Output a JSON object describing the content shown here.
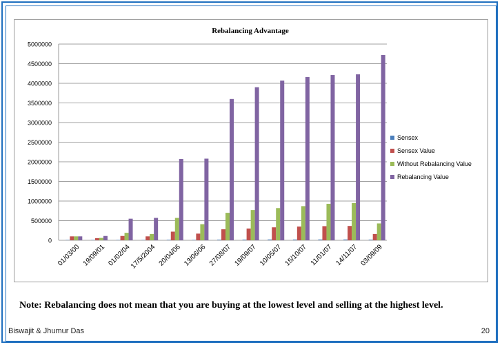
{
  "note": "Note: Rebalancing does not mean that you are buying at the lowest level and selling at the highest level.",
  "footer": {
    "author": "Biswajit & Jhumur Das",
    "page": "20"
  },
  "chart_data": {
    "type": "bar",
    "title": "Rebalancing Advantage",
    "xlabel": "",
    "ylabel": "",
    "ylim": [
      0,
      5000000
    ],
    "yticks": [
      "0",
      "500000",
      "1000000",
      "1500000",
      "2000000",
      "2500000",
      "3000000",
      "3500000",
      "4000000",
      "4500000",
      "5000000"
    ],
    "grid": true,
    "legend_position": "right",
    "categories": [
      "01/03/00",
      "19/09/01",
      "01/02/04",
      "17/5/2004",
      "20/04/06",
      "13/06/06",
      "27/08/07",
      "19/09/07",
      "10/05/07",
      "15/10/07",
      "11/01/07",
      "14/11/07",
      "03/09/09"
    ],
    "series": [
      {
        "name": "Sensex",
        "color": "#4a7ebb",
        "values": [
          5000,
          3000,
          6000,
          6000,
          12000,
          10000,
          15000,
          17000,
          20000,
          19000,
          20000,
          20000,
          16000
        ]
      },
      {
        "name": "Sensex Value",
        "color": "#c0504d",
        "values": [
          100000,
          55000,
          110000,
          100000,
          220000,
          170000,
          280000,
          300000,
          330000,
          350000,
          360000,
          365000,
          160000
        ]
      },
      {
        "name": "Without Rebalancing Value",
        "color": "#9bbb59",
        "values": [
          100000,
          60000,
          190000,
          160000,
          570000,
          410000,
          700000,
          770000,
          820000,
          870000,
          930000,
          950000,
          430000
        ]
      },
      {
        "name": "Rebalancing Value",
        "color": "#8064a2",
        "values": [
          100000,
          110000,
          550000,
          570000,
          2070000,
          2080000,
          3600000,
          3900000,
          4070000,
          4160000,
          4210000,
          4230000,
          4720000
        ]
      }
    ]
  }
}
